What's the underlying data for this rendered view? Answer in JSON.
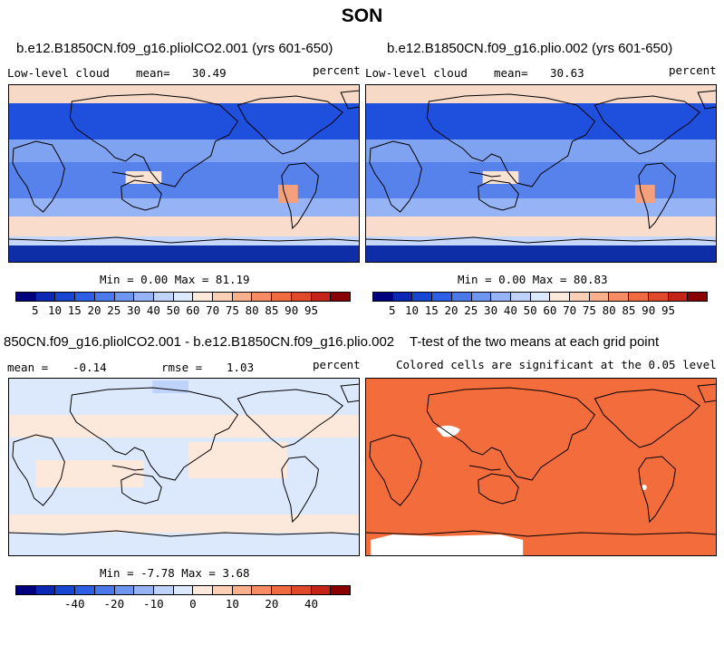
{
  "title": "SON",
  "palette_levels": [
    "#00007f",
    "#0a28b4",
    "#1746d2",
    "#2d5fe6",
    "#4b78eb",
    "#6e96f0",
    "#96b4f5",
    "#bed2fa",
    "#dce8fc",
    "#fde9dc",
    "#fcd0b4",
    "#fbb08c",
    "#f78c64",
    "#ef6a41",
    "#e0482a",
    "#c42418",
    "#8a0000"
  ],
  "panels": [
    {
      "title": "b.e12.B1850CN.f09_g16.pliolCO2.001 (yrs 601-650)",
      "left_label": "Low-level cloud",
      "mean_label": "mean=",
      "mean_value": "30.49",
      "units": "percent",
      "stats": "Min =   0.00 Max =  81.19",
      "colorbar_ticks": [
        "5",
        "10",
        "15",
        "20",
        "25",
        "30",
        "40",
        "50",
        "60",
        "70",
        "75",
        "80",
        "85",
        "90",
        "95"
      ]
    },
    {
      "title": "b.e12.B1850CN.f09_g16.plio.002 (yrs 601-650)",
      "left_label": "Low-level cloud",
      "mean_label": "mean=",
      "mean_value": "30.63",
      "units": "percent",
      "stats": "Min =   0.00 Max =  80.83",
      "colorbar_ticks": [
        "5",
        "10",
        "15",
        "20",
        "25",
        "30",
        "40",
        "50",
        "60",
        "70",
        "75",
        "80",
        "85",
        "90",
        "95"
      ]
    },
    {
      "title": "850CN.f09_g16.pliolCO2.001 - b.e12.B1850CN.f09_g16.plio.002",
      "mean_label": "mean =",
      "mean_value": "-0.14",
      "rmse_label": "rmse =",
      "rmse_value": "1.03",
      "units": "percent",
      "stats": "Min =  -7.78 Max =   3.68",
      "colorbar_ticks": [
        "-40",
        "-20",
        "-10",
        "0",
        "10",
        "20",
        "40"
      ]
    },
    {
      "title": "T-test of the two means at each grid point",
      "subtitle": "Colored cells are significant at the 0.05 level",
      "fill_color": "#f26c3c"
    }
  ]
}
